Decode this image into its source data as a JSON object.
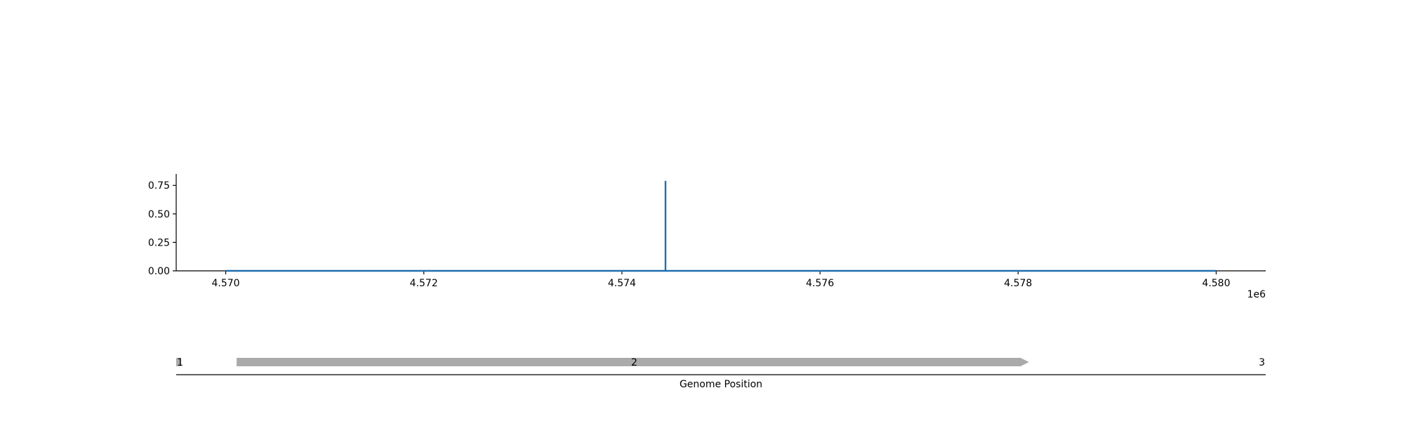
{
  "chart_data": [
    {
      "type": "line",
      "title": "",
      "xlabel": "",
      "ylabel": "",
      "x_offset_label": "1e6",
      "xlim": [
        4569500,
        4580500
      ],
      "ylim": [
        0,
        0.85
      ],
      "grid": false,
      "xticks": [
        4570000,
        4572000,
        4574000,
        4576000,
        4578000,
        4580000
      ],
      "xtick_labels": [
        "4.570",
        "4.572",
        "4.574",
        "4.576",
        "4.578",
        "4.580"
      ],
      "yticks": [
        0,
        0.25,
        0.5,
        0.75
      ],
      "ytick_labels": [
        "0.00",
        "0.25",
        "0.50",
        "0.75"
      ],
      "series": [
        {
          "color": "#1f6fb0",
          "x": [
            4570000,
            4574440,
            4574440,
            4574440,
            4580000
          ],
          "y": [
            0,
            0,
            0.79,
            0,
            0
          ]
        }
      ]
    },
    {
      "type": "gene-track",
      "xlabel": "Genome Position",
      "xlim": [
        4569500,
        4580500
      ],
      "features": [
        {
          "label": "1",
          "start": 4569500,
          "end": 4569550,
          "strand": "+",
          "color": "#aaaaaa"
        },
        {
          "label": "2",
          "start": 4570110,
          "end": 4578110,
          "strand": "+",
          "color": "#aaaaaa"
        },
        {
          "label": "3",
          "start": 4580500,
          "end": 4580500,
          "strand": "+",
          "color": "#aaaaaa"
        }
      ]
    }
  ]
}
